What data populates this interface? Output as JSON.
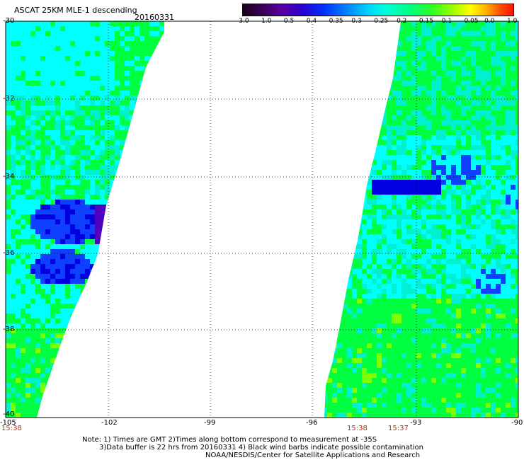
{
  "header": {
    "title": "ASCAT 25KM MLE-1 descending",
    "date": "20160331"
  },
  "colorbar": {
    "ticks": [
      "-3.0",
      "-1.0",
      "-0.5",
      "-0.4",
      "-0.35",
      "-0.3",
      "-0.25",
      "-0.2",
      "-0.15",
      "-0.1",
      "-0.05",
      "0.0",
      "1.0"
    ]
  },
  "axes": {
    "lat_labels": [
      "-30",
      "-32",
      "-34",
      "-36",
      "-38",
      "-40"
    ],
    "lon_labels": [
      "-105",
      "-102",
      "-99",
      "-96",
      "-93",
      "-90"
    ]
  },
  "pass_times": {
    "left": "15:38",
    "right_a": "15:38",
    "right_b": "15:37"
  },
  "notes": {
    "line1": "Note: 1) Times are GMT 2)Times along bottom correspond to measurement at -35S",
    "line2": "3)Data buffer is 22 hrs from 20160331 4) Black wind barbs indicate possible contamination",
    "line3": "NOAA/NESDIS/Center for Satellite Applications and Research"
  },
  "map_colors": {
    "cyan": "#00ffff",
    "aqua": "#00f0d0",
    "green": "#00ff40",
    "lime": "#80ff00",
    "blue": "#1040ff",
    "deep_blue": "#0000e0",
    "purple": "#5000c0"
  }
}
